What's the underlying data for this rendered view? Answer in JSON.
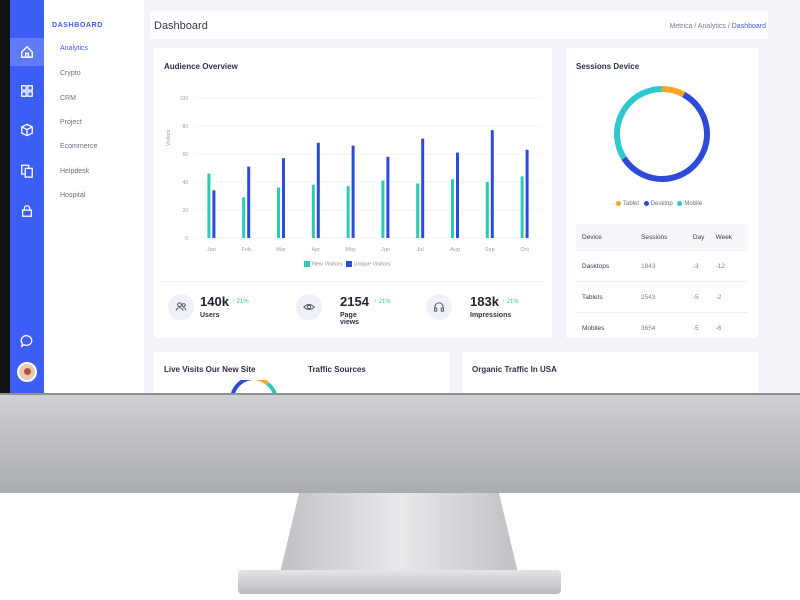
{
  "sidebar": {
    "section_label": "DASHBOARD",
    "items": [
      {
        "label": "Analytics",
        "active": true
      },
      {
        "label": "Crypto"
      },
      {
        "label": "CRM"
      },
      {
        "label": "Project"
      },
      {
        "label": "Ecommerce"
      },
      {
        "label": "Helpdesk"
      },
      {
        "label": "Hospital"
      }
    ],
    "rail_icons": [
      "home-icon",
      "grid-icon",
      "box-icon",
      "copy-icon",
      "lock-icon",
      "chat-icon"
    ]
  },
  "header": {
    "title": "Dashboard",
    "breadcrumbs": [
      "Metrica",
      "Analytics",
      "Dashboard"
    ],
    "separator": "/"
  },
  "audience": {
    "title": "Audience Overview",
    "y_axis_label": "Visitors",
    "legend": [
      "New Visitors",
      "Unique Visitors"
    ],
    "stats": [
      {
        "value": "140k",
        "change": "↑ 21%",
        "label": "Users",
        "icon": "users-icon"
      },
      {
        "value": "2154",
        "change": "↑ 21%",
        "label": "Page views",
        "icon": "eye-icon"
      },
      {
        "value": "183k",
        "change": "↑ 21%",
        "label": "Impressions",
        "icon": "headphones-icon"
      }
    ]
  },
  "chart_data": {
    "type": "bar",
    "title": "Audience Overview",
    "xlabel": "",
    "ylabel": "Visitors",
    "ylim": [
      0,
      100
    ],
    "yticks": [
      0,
      20,
      40,
      60,
      80,
      100
    ],
    "categories": [
      "Jan",
      "Feb",
      "Mar",
      "Apr",
      "May",
      "Jun",
      "Jul",
      "Aug",
      "Sep",
      "Oct"
    ],
    "series": [
      {
        "name": "New Visitors",
        "color": "#2ec9b8",
        "values": [
          46,
          29,
          36,
          38,
          37,
          41,
          39,
          42,
          40,
          44
        ]
      },
      {
        "name": "Unique Visitors",
        "color": "#2c4bd8",
        "values": [
          34,
          51,
          57,
          68,
          66,
          58,
          71,
          61,
          77,
          63
        ]
      }
    ],
    "grid": true,
    "legend_position": "bottom"
  },
  "sessions": {
    "title": "Sessions Device",
    "donut": {
      "segments": [
        {
          "name": "Tablet",
          "value": 8,
          "color": "#f6a623"
        },
        {
          "name": "Desktop",
          "value": 58,
          "color": "#2c4bd8"
        },
        {
          "name": "Mobile",
          "value": 34,
          "color": "#2ec9d0"
        }
      ]
    },
    "legend": [
      "Tablet",
      "Desktop",
      "Mobile"
    ],
    "table": {
      "headers": [
        "Device",
        "Sessions",
        "Day",
        "Week"
      ],
      "rows": [
        [
          "Dasktops",
          "1843",
          "-3",
          "-12"
        ],
        [
          "Tablets",
          "2543",
          "-5",
          "-2"
        ],
        [
          "Mobiles",
          "3654",
          "-5",
          "-6"
        ]
      ]
    }
  },
  "bottom_cards": {
    "live_visits_title": "Live Visits Our New Site",
    "traffic_sources_title": "Traffic Sources",
    "organic_title": "Organic Traffic In USA"
  }
}
